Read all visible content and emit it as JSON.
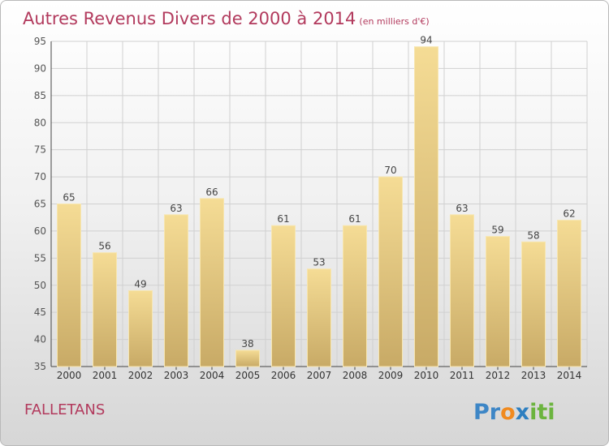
{
  "header": {
    "title": "Autres Revenus Divers de 2000 à 2014",
    "subtitle": "(en milliers d'€)"
  },
  "commune": "FALLETANS",
  "brand": "Proxiti",
  "colors": {
    "title": "#b23a5d",
    "bar_top": "#f5dc95",
    "bar_bottom": "#c8aa66",
    "grid": "#d0d0d0"
  },
  "chart_data": {
    "type": "bar",
    "categories": [
      "2000",
      "2001",
      "2002",
      "2003",
      "2004",
      "2005",
      "2006",
      "2007",
      "2008",
      "2009",
      "2010",
      "2011",
      "2012",
      "2013",
      "2014"
    ],
    "values": [
      65,
      56,
      49,
      63,
      66,
      38,
      61,
      53,
      61,
      70,
      94,
      63,
      59,
      58,
      62
    ],
    "title": "Autres Revenus Divers de 2000 à 2014",
    "subtitle": "(en milliers d'€)",
    "ylim": [
      35,
      95
    ],
    "yticks": [
      35,
      40,
      45,
      50,
      55,
      60,
      65,
      70,
      75,
      80,
      85,
      90,
      95
    ],
    "grid": true,
    "data_labels": true
  }
}
